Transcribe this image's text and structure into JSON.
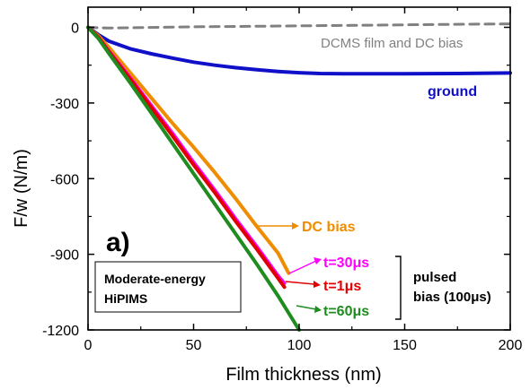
{
  "chart_data": {
    "type": "line",
    "panel_label": "a)",
    "xlabel": "Film thickness (nm)",
    "ylabel": "F/w (N/m)",
    "xlim": [
      0,
      200
    ],
    "ylim": [
      -1200,
      80
    ],
    "x_ticks": [
      0,
      50,
      100,
      150,
      200
    ],
    "y_ticks": [
      0,
      -300,
      -600,
      -900,
      -1200
    ],
    "grid": false,
    "series": [
      {
        "name": "DCMS film and DC bias",
        "color": "#808080",
        "dash": true,
        "x": [
          0,
          10,
          25,
          50,
          75,
          100,
          125,
          150,
          175,
          200
        ],
        "y": [
          0,
          -3,
          -1,
          2,
          4,
          6,
          8,
          10,
          12,
          14
        ]
      },
      {
        "name": "ground",
        "color": "#1010c8",
        "dash": false,
        "x": [
          0,
          5,
          10,
          20,
          30,
          40,
          50,
          60,
          70,
          80,
          90,
          100,
          110,
          125,
          150,
          175,
          200
        ],
        "y": [
          0,
          -30,
          -55,
          -85,
          -105,
          -122,
          -138,
          -150,
          -160,
          -168,
          -175,
          -180,
          -183,
          -184,
          -184,
          -183,
          -181
        ]
      },
      {
        "name": "DC bias",
        "color": "#f08c00",
        "dash": false,
        "x": [
          0,
          5,
          10,
          20,
          30,
          40,
          50,
          60,
          70,
          80,
          90,
          95
        ],
        "y": [
          0,
          -35,
          -80,
          -180,
          -280,
          -380,
          -475,
          -575,
          -680,
          -790,
          -895,
          -975
        ]
      },
      {
        "name": "t=30μs",
        "color": "#ff00ff",
        "dash": false,
        "x": [
          0,
          5,
          10,
          20,
          30,
          40,
          50,
          60,
          70,
          80,
          90,
          93
        ],
        "y": [
          0,
          -40,
          -95,
          -200,
          -310,
          -420,
          -535,
          -645,
          -760,
          -870,
          -985,
          -1015
        ]
      },
      {
        "name": "t=1μs",
        "color": "#e00000",
        "dash": false,
        "x": [
          0,
          5,
          10,
          20,
          30,
          40,
          50,
          60,
          70,
          80,
          90,
          93
        ],
        "y": [
          0,
          -40,
          -98,
          -205,
          -318,
          -430,
          -545,
          -655,
          -770,
          -880,
          -995,
          -1030
        ]
      },
      {
        "name": "t=60μs",
        "color": "#1e8c1e",
        "dash": false,
        "x": [
          0,
          5,
          10,
          20,
          30,
          40,
          50,
          60,
          70,
          80,
          90,
          100
        ],
        "y": [
          0,
          -45,
          -105,
          -220,
          -340,
          -460,
          -580,
          -700,
          -820,
          -940,
          -1065,
          -1200
        ]
      }
    ],
    "annotations": {
      "dcms": {
        "text": "DCMS film and DC bias",
        "color": "#808080"
      },
      "ground": {
        "text": "ground",
        "color": "#1010c8"
      },
      "dcbias": {
        "text": "DC bias",
        "color": "#f08c00"
      },
      "t30": {
        "text": "t=30μs",
        "color": "#ff00ff"
      },
      "t1": {
        "text": "t=1μs",
        "color": "#e00000"
      },
      "t60": {
        "text": "t=60μs",
        "color": "#1e8c1e"
      },
      "pulsed_line1": "pulsed",
      "pulsed_line2": "bias (100μs)",
      "box_line1": "Moderate-energy",
      "box_line2": "HiPIMS"
    }
  }
}
